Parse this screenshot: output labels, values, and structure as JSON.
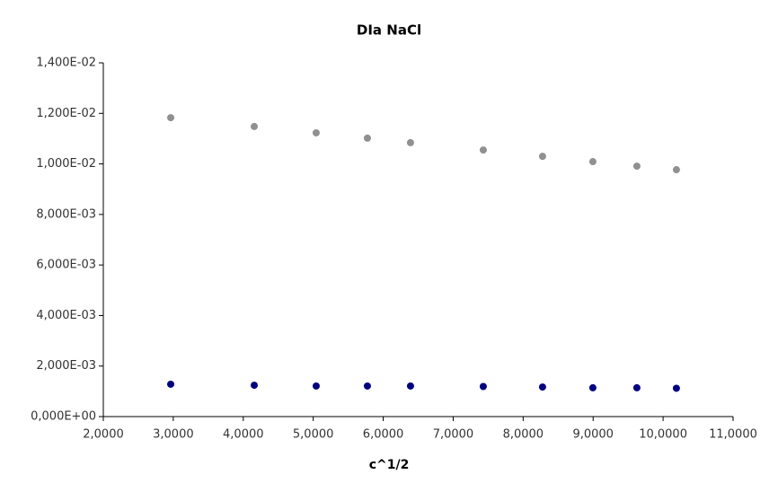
{
  "chart_data": {
    "type": "scatter",
    "title": "DIa NaCl",
    "x_label": "c^1/2",
    "x": [
      2.963,
      4.157,
      5.042,
      5.774,
      6.39,
      7.43,
      8.277,
      8.996,
      9.625,
      10.19
    ],
    "series": [
      {
        "color": "#909090",
        "values": [
          0.01183,
          0.01148,
          0.01123,
          0.01102,
          0.01084,
          0.01055,
          0.0103,
          0.01009,
          0.00991,
          0.00977
        ]
      },
      {
        "color": "#000080",
        "values": [
          0.00128,
          0.00124,
          0.00121,
          0.00121,
          0.00121,
          0.00119,
          0.00117,
          0.00114,
          0.00114,
          0.00112
        ]
      }
    ],
    "xlim": [
      2,
      11
    ],
    "xticks": [
      {
        "value": 2,
        "label": "2,0000"
      },
      {
        "value": 3,
        "label": "3,0000"
      },
      {
        "value": 4,
        "label": "4,0000"
      },
      {
        "value": 5,
        "label": "5,0000"
      },
      {
        "value": 6,
        "label": "6,0000"
      },
      {
        "value": 7,
        "label": "7,0000"
      },
      {
        "value": 8,
        "label": "8,0000"
      },
      {
        "value": 9,
        "label": "9,0000"
      },
      {
        "value": 10,
        "label": "10,0000"
      },
      {
        "value": 11,
        "label": "11,0000"
      }
    ],
    "ylim": [
      0,
      0.014
    ],
    "yticks": [
      {
        "value": 0,
        "label": "0,000E+00"
      },
      {
        "value": 0.002,
        "label": "2,000E-03"
      },
      {
        "value": 0.004,
        "label": "4,000E-03"
      },
      {
        "value": 0.006,
        "label": "6,000E-03"
      },
      {
        "value": 0.008,
        "label": "8,000E-03"
      },
      {
        "value": 0.01,
        "label": "1,000E-02"
      },
      {
        "value": 0.012,
        "label": "1,200E-02"
      },
      {
        "value": 0.014,
        "label": "1,400E-02"
      }
    ],
    "grid": false
  }
}
